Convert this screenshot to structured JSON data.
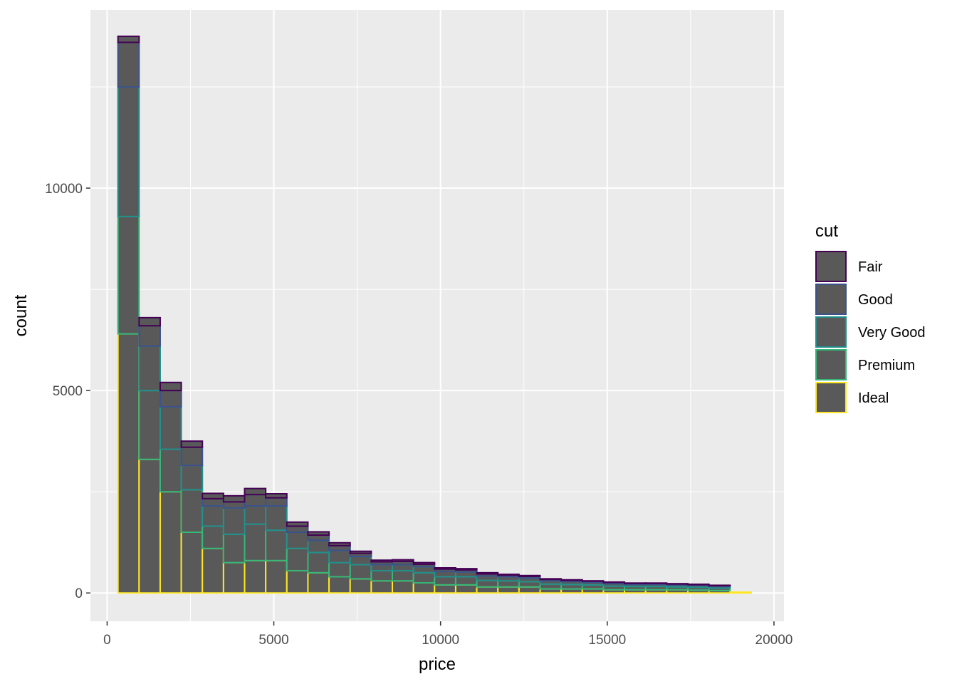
{
  "chart_data": {
    "type": "bar",
    "variant": "stacked-histogram",
    "title": "",
    "xlabel": "price",
    "ylabel": "count",
    "xlim": [
      -500,
      20300
    ],
    "ylim": [
      -700,
      14400
    ],
    "x_ticks": [
      0,
      5000,
      10000,
      15000,
      20000
    ],
    "x_tick_labels": [
      "0",
      "5000",
      "10000",
      "15000",
      "20000"
    ],
    "y_ticks": [
      0,
      5000,
      10000
    ],
    "y_tick_labels": [
      "0",
      "5000",
      "10000"
    ],
    "grid": true,
    "bar_fill": "#595959",
    "bin_start": 326,
    "bin_width": 633,
    "legend": {
      "title": "cut",
      "placement": "right"
    },
    "series": [
      {
        "name": "Ideal",
        "color": "#FDE725",
        "values": [
          6400,
          3300,
          2500,
          1500,
          1100,
          750,
          800,
          800,
          550,
          500,
          400,
          350,
          300,
          300,
          250,
          200,
          200,
          150,
          150,
          150,
          100,
          100,
          100,
          80,
          80,
          80,
          80,
          70,
          60,
          20
        ]
      },
      {
        "name": "Premium",
        "color": "#35B779",
        "values": [
          2900,
          1700,
          1050,
          1050,
          550,
          700,
          900,
          750,
          550,
          500,
          350,
          350,
          250,
          250,
          250,
          200,
          200,
          160,
          150,
          130,
          120,
          110,
          100,
          90,
          80,
          80,
          70,
          70,
          60,
          0
        ]
      },
      {
        "name": "Very Good",
        "color": "#21908C",
        "values": [
          3200,
          1100,
          1050,
          600,
          500,
          650,
          450,
          600,
          400,
          300,
          300,
          200,
          150,
          150,
          150,
          130,
          120,
          110,
          100,
          90,
          80,
          70,
          60,
          60,
          50,
          50,
          45,
          45,
          40,
          0
        ]
      },
      {
        "name": "Good",
        "color": "#3B528B",
        "values": [
          1100,
          500,
          400,
          450,
          180,
          150,
          280,
          200,
          150,
          130,
          120,
          80,
          70,
          80,
          60,
          60,
          50,
          50,
          40,
          40,
          35,
          30,
          30,
          30,
          25,
          25,
          25,
          20,
          20,
          0
        ]
      },
      {
        "name": "Fair",
        "color": "#440154",
        "values": [
          150,
          200,
          200,
          150,
          130,
          150,
          150,
          100,
          100,
          80,
          70,
          50,
          40,
          40,
          40,
          30,
          30,
          30,
          20,
          20,
          15,
          15,
          10,
          10,
          10,
          10,
          10,
          10,
          10,
          0
        ]
      }
    ],
    "legend_order": [
      "Fair",
      "Good",
      "Very Good",
      "Premium",
      "Ideal"
    ]
  }
}
